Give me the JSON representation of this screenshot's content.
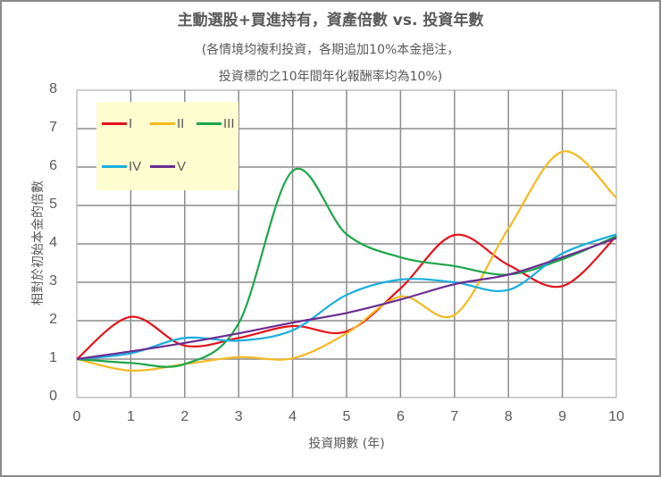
{
  "title": "主動選股+買進持有，資產倍數 vs. 投資年數",
  "subtitle_line1": "(各情境均複利投資，各期追加10%本金挹注，",
  "subtitle_line2": "投資標的之10年間年化報酬率均為10%)",
  "colors": {
    "I": "#e3131b",
    "II": "#f5b921",
    "III": "#1ea54a",
    "IV": "#19aee0",
    "V": "#6a2d91",
    "grid": "#8c8c8c",
    "axis_text": "#595959",
    "legend_bg": "#fefed0"
  },
  "legend": {
    "items": [
      {
        "label": "I"
      },
      {
        "label": "II"
      },
      {
        "label": "III"
      },
      {
        "label": "IV"
      },
      {
        "label": "V"
      }
    ]
  },
  "chart_data": {
    "type": "line",
    "title": "主動選股+買進持有，資產倍數 vs. 投資年數",
    "subtitle": "(各情境均複利投資，各期追加10%本金挹注，投資標的之10年間年化報酬率均為10%)",
    "xlabel": "投資期數 (年)",
    "ylabel": "相對於初始本金的倍數",
    "x": [
      0,
      1,
      2,
      3,
      4,
      5,
      6,
      7,
      8,
      9,
      10
    ],
    "xlim": [
      0,
      10
    ],
    "ylim": [
      0,
      8
    ],
    "xticks": [
      "0",
      "1",
      "2",
      "3",
      "4",
      "5",
      "6",
      "7",
      "8",
      "9",
      "10"
    ],
    "yticks": [
      "0",
      "1",
      "2",
      "3",
      "4",
      "5",
      "6",
      "7",
      "8"
    ],
    "grid": true,
    "legend_position": "upper-left-inside",
    "smooth": true,
    "series": [
      {
        "name": "I",
        "values": [
          1.0,
          2.1,
          1.35,
          1.55,
          1.86,
          1.72,
          2.84,
          4.23,
          3.45,
          2.9,
          4.2
        ]
      },
      {
        "name": "II",
        "values": [
          1.0,
          0.7,
          0.87,
          1.05,
          1.02,
          1.67,
          2.63,
          2.15,
          4.4,
          6.4,
          5.2
        ]
      },
      {
        "name": "III",
        "values": [
          1.0,
          0.9,
          0.87,
          1.93,
          5.9,
          4.25,
          3.65,
          3.42,
          3.2,
          3.6,
          4.2
        ]
      },
      {
        "name": "IV",
        "values": [
          1.0,
          1.15,
          1.55,
          1.48,
          1.75,
          2.67,
          3.07,
          3.0,
          2.8,
          3.75,
          4.25
        ]
      },
      {
        "name": "V",
        "values": [
          1.0,
          1.2,
          1.42,
          1.67,
          1.95,
          2.2,
          2.55,
          2.95,
          3.2,
          3.65,
          4.15
        ]
      }
    ]
  }
}
